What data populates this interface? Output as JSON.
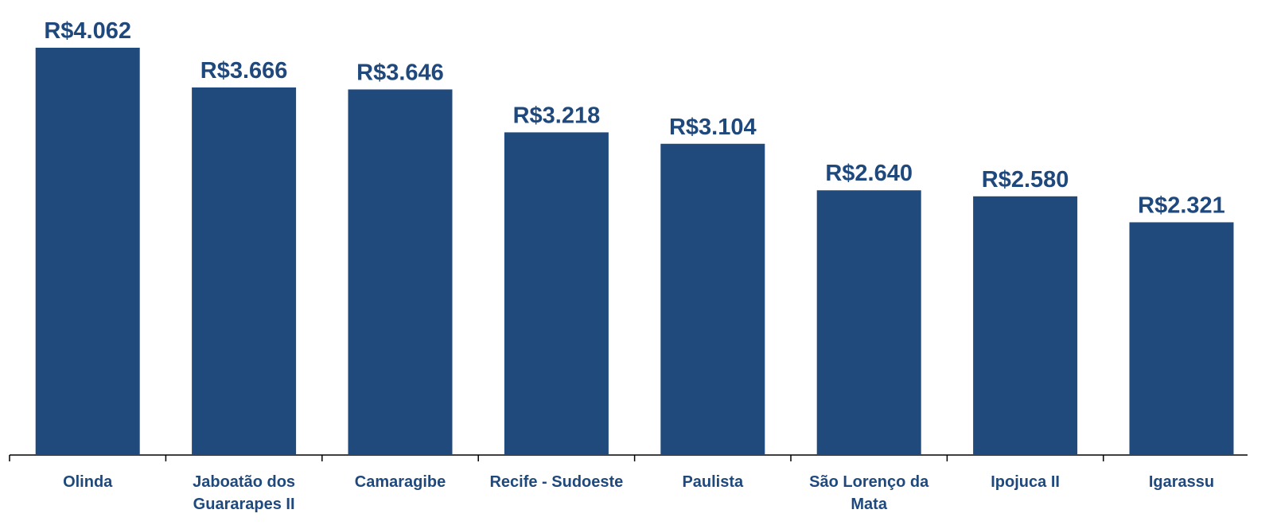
{
  "chart_data": {
    "type": "bar",
    "categories": [
      "Olinda",
      "Jaboatão dos Guararapes II",
      "Camaragibe",
      "Recife - Sudoeste",
      "Paulista",
      "São Lorenço da Mata",
      "Ipojuca II",
      "Igarassu"
    ],
    "values": [
      4062,
      3666,
      3646,
      3218,
      3104,
      2640,
      2580,
      2321
    ],
    "value_labels": [
      "R$4.062",
      "R$3.666",
      "R$3.646",
      "R$3.218",
      "R$3.104",
      "R$2.640",
      "R$2.580",
      "R$2.321"
    ],
    "color": "#214a7c"
  }
}
